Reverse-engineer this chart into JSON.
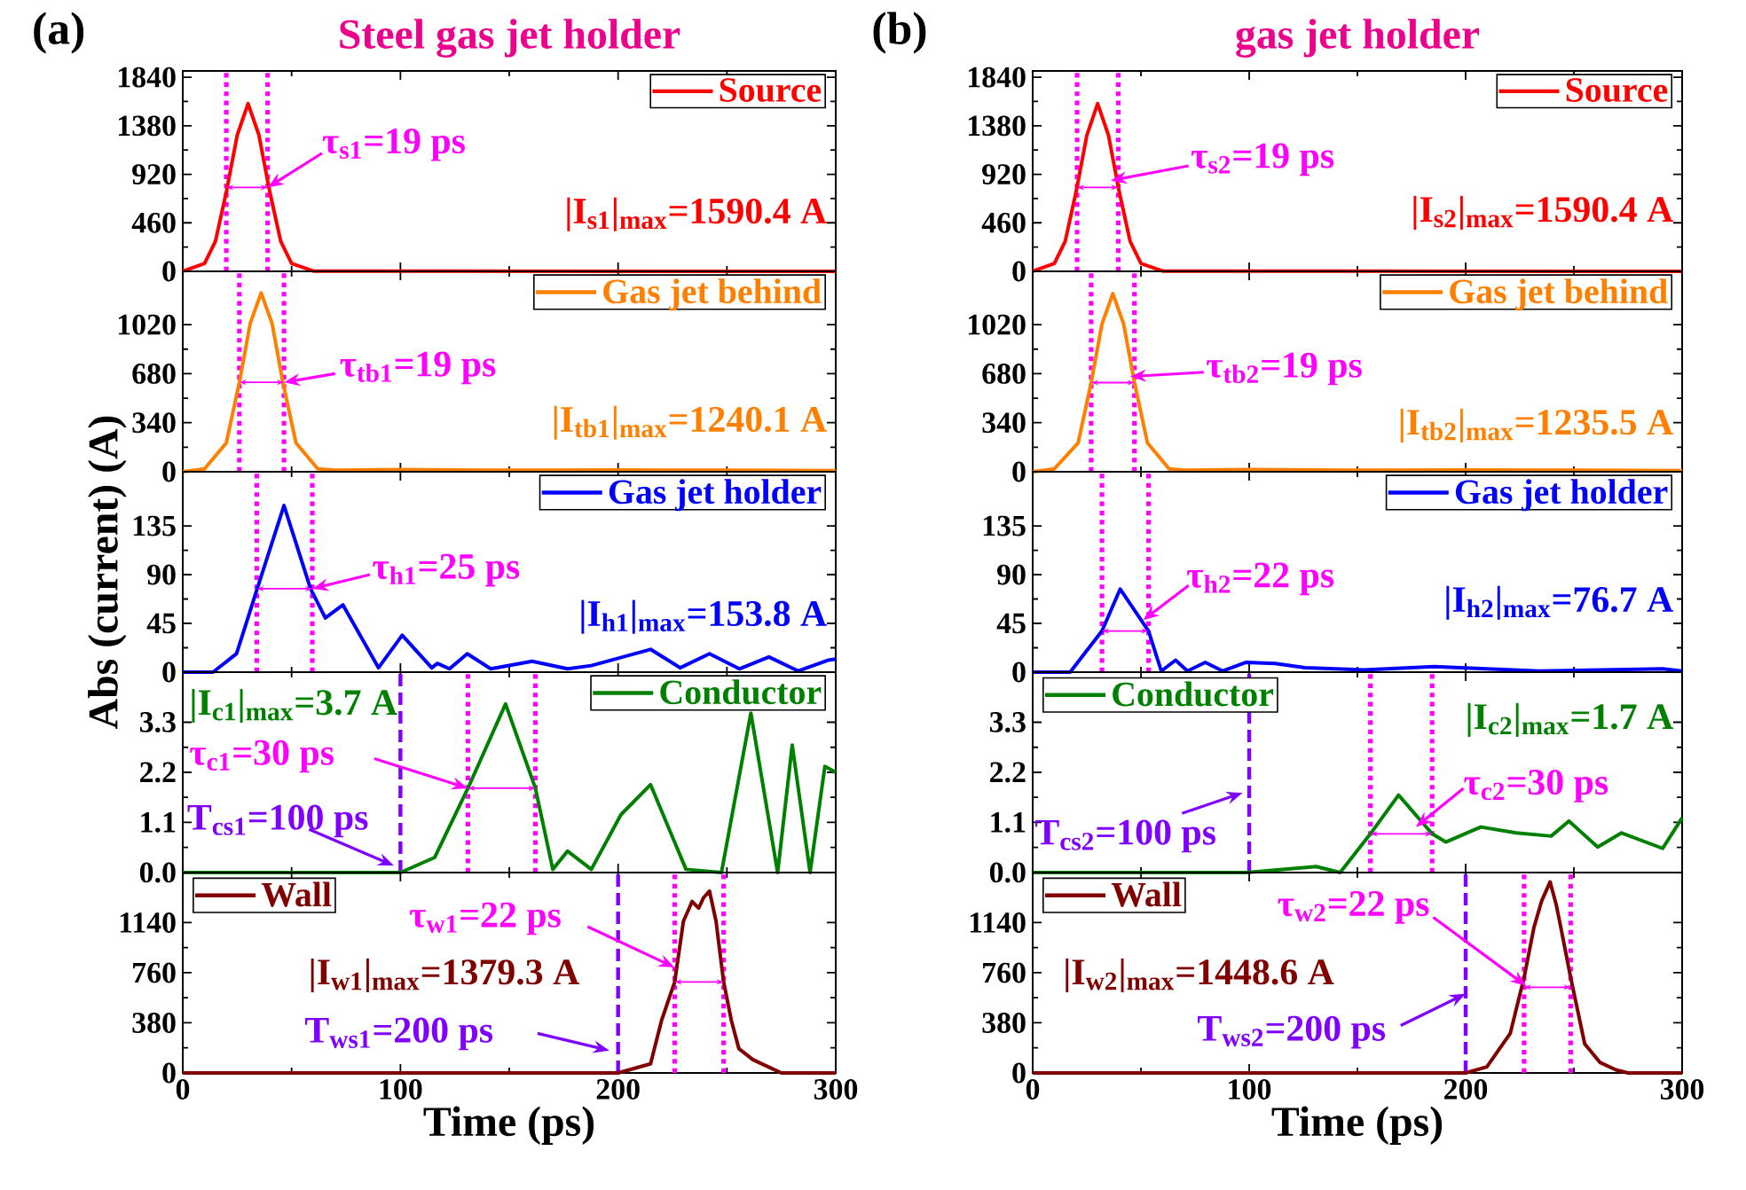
{
  "chart_data": [
    {
      "type": "line",
      "title": "Steel gas jet holder",
      "xlim": [
        0,
        300
      ],
      "xticks": [
        0,
        100,
        200,
        300
      ],
      "ylim": [
        0,
        1900
      ],
      "yticks": [
        0,
        460,
        920,
        1380,
        1840
      ],
      "tick_labels": "y",
      "legend": "top right",
      "series": [
        {
          "name": "Source",
          "color": "#ff0000",
          "x": [
            0,
            10,
            15,
            20,
            25,
            30,
            35,
            40,
            45,
            50,
            60,
            300
          ],
          "values": [
            0,
            75,
            285,
            750,
            1290,
            1590.4,
            1290,
            750,
            285,
            75,
            2,
            0
          ]
        }
      ],
      "ref_lines": [
        {
          "axis": "x",
          "value": 20,
          "color": "#ff00ff",
          "line_style": "dotted"
        },
        {
          "axis": "x",
          "value": 39,
          "color": "#ff00ff",
          "line_style": "dotted"
        }
      ],
      "annotations": [
        "(a)",
        {
          "text": "τ$_{s1}$=19 ps",
          "x": 39,
          "y": 795
        },
        "|I$_{s1}$|$_{max}$=1590.4 A"
      ]
    },
    {
      "type": "line",
      "xlim": [
        0,
        300
      ],
      "xticks": [
        0,
        100,
        200,
        300
      ],
      "ylim": [
        0,
        1390
      ],
      "yticks": [
        0,
        340,
        680,
        1020
      ],
      "tick_labels": "y",
      "legend": "top right",
      "series": [
        {
          "name": "Gas jet behind",
          "color": "#ff8000",
          "x": [
            0,
            10,
            20,
            26,
            31,
            36,
            41,
            46,
            52,
            62,
            70,
            100,
            150,
            200,
            250,
            300
          ],
          "values": [
            0,
            20,
            200,
            620,
            1030,
            1240.1,
            1030,
            620,
            200,
            20,
            10,
            15,
            10,
            12,
            10,
            8
          ]
        }
      ],
      "ref_lines": [
        {
          "axis": "x",
          "value": 26,
          "color": "#ff00ff",
          "line_style": "dotted"
        },
        {
          "axis": "x",
          "value": 46.5,
          "color": "#ff00ff",
          "line_style": "dotted"
        }
      ],
      "annotations": [
        {
          "text": "τ$_{tb1}$=19 ps",
          "x": 46.5,
          "y": 620
        },
        "|I$_{tb1}$|$_{max}$=1240.1 A"
      ]
    },
    {
      "type": "line",
      "ylabel": "Abs (current) (A)",
      "xlim": [
        0,
        300
      ],
      "xticks": [
        0,
        100,
        200,
        300
      ],
      "ylim": [
        0,
        185
      ],
      "yticks": [
        0,
        45,
        90,
        135
      ],
      "tick_labels": "y",
      "legend": "top right",
      "series": [
        {
          "name": "Gas jet holder",
          "color": "#0000ff",
          "x": [
            0,
            13.9,
            24.7,
            34.2,
            46.5,
            58.7,
            65.5,
            73.6,
            89.9,
            100.8,
            114.4,
            117,
            122.5,
            130.7,
            141.5,
            160.5,
            176.8,
            187.7,
            214.9,
            228.5,
            242,
            255.7,
            269.3,
            282.8,
            296.4,
            300
          ],
          "values": [
            0,
            0,
            17,
            77,
            153.8,
            77,
            50,
            62,
            4,
            34,
            4,
            8,
            3,
            17,
            3,
            10,
            3,
            6,
            21,
            4,
            17,
            3,
            14,
            1,
            11,
            12
          ]
        }
      ],
      "ref_lines": [
        {
          "axis": "x",
          "value": 34,
          "color": "#ff00ff",
          "line_style": "dotted"
        },
        {
          "axis": "x",
          "value": 59.5,
          "color": "#ff00ff",
          "line_style": "dotted"
        }
      ],
      "annotations": [
        {
          "text": "τ$_{h1}$=25 ps",
          "x": 59.5,
          "y": 77
        },
        "|I$_{h1}$|$_{max}$=153.8 A"
      ]
    },
    {
      "type": "line",
      "xlim": [
        0,
        300
      ],
      "xticks": [
        0,
        100,
        200,
        300
      ],
      "ylim": [
        0,
        4.4
      ],
      "yticks": [
        {
          "value": 0,
          "label": "0.0"
        },
        1.1,
        2.2,
        3.3
      ],
      "tick_labels": "y",
      "legend": "top right",
      "series": [
        {
          "name": "Conductor",
          "color": "#008000",
          "x": [
            0,
            100,
            115.7,
            131,
            148.3,
            162,
            170,
            176.8,
            187.7,
            201.3,
            214.9,
            231.2,
            247.5,
            261,
            273.3,
            280,
            288.2,
            295,
            300
          ],
          "values": [
            0,
            0,
            0.33,
            1.85,
            3.7,
            1.85,
            0.07,
            0.47,
            0.07,
            1.27,
            1.93,
            0.07,
            0,
            3.5,
            0,
            2.8,
            0,
            2.33,
            2.2
          ]
        }
      ],
      "ref_lines": [
        {
          "axis": "x",
          "value": 131,
          "color": "#ff00ff",
          "line_style": "dotted"
        },
        {
          "axis": "x",
          "value": 162,
          "color": "#ff00ff",
          "line_style": "dotted"
        },
        {
          "axis": "x",
          "value": 100,
          "color": "#7f00ff",
          "line_style": "dashed"
        }
      ],
      "annotations": [
        {
          "text": "τ$_{c1}$=30 ps",
          "x": 131,
          "y": 1.85
        },
        "|I$_{c1}$|$_{max}$=3.7 A",
        {
          "text": "T$_{cs1}$=100 ps",
          "x": 97,
          "y": 0.15
        }
      ]
    },
    {
      "type": "line",
      "xlabel": "Time (ps)",
      "xlim": [
        0,
        300
      ],
      "xticks": [
        0,
        100,
        200,
        300
      ],
      "ylim": [
        0,
        1520
      ],
      "yticks": [
        0,
        380,
        760,
        1140
      ],
      "legend": "top left",
      "series": [
        {
          "name": "Wall",
          "color": "#800000",
          "x": [
            0,
            200,
            214.9,
            220,
            226,
            230,
            234,
            237,
            239.3,
            242,
            245,
            248.5,
            252,
            255.5,
            262,
            269,
            275,
            300
          ],
          "values": [
            0,
            0,
            69,
            400,
            690,
            1150,
            1300,
            1250,
            1330,
            1379.3,
            1150,
            690,
            400,
            184,
            100,
            46,
            0,
            0
          ]
        }
      ],
      "ref_lines": [
        {
          "axis": "x",
          "value": 226,
          "color": "#ff00ff",
          "line_style": "dotted"
        },
        {
          "axis": "x",
          "value": 248.5,
          "color": "#ff00ff",
          "line_style": "dotted"
        },
        {
          "axis": "x",
          "value": 200,
          "color": "#7f00ff",
          "line_style": "dashed"
        }
      ],
      "annotations": [
        {
          "text": "τ$_{w1}$=22 ps",
          "x": 226,
          "y": 800
        },
        "|I$_{w1}$|$_{max}$=1379.3 A",
        {
          "text": "T$_{ws1}$=200 ps",
          "x": 196,
          "y": 170
        }
      ]
    },
    {
      "type": "line",
      "title": "gas jet holder",
      "xlim": [
        0,
        300
      ],
      "xticks": [
        0,
        100,
        200,
        300
      ],
      "ylim": [
        0,
        1900
      ],
      "yticks": [
        0,
        460,
        920,
        1380,
        1840
      ],
      "tick_labels": "y",
      "legend": "top right",
      "series": [
        {
          "name": "Source",
          "color": "#ff0000",
          "x": [
            0,
            10,
            15,
            20,
            25,
            30,
            35,
            40,
            45,
            50,
            60,
            300
          ],
          "values": [
            0,
            75,
            285,
            750,
            1290,
            1590.4,
            1290,
            750,
            285,
            75,
            2,
            0
          ]
        }
      ],
      "ref_lines": [
        {
          "axis": "x",
          "value": 20.5,
          "color": "#ff00ff",
          "line_style": "dotted"
        },
        {
          "axis": "x",
          "value": 39.5,
          "color": "#ff00ff",
          "line_style": "dotted"
        }
      ],
      "annotations": [
        "(b)",
        {
          "text": "τ$_{s2}$=19 ps",
          "x": 36,
          "y": 860
        },
        "|I$_{s2}$|$_{max}$=1590.4 A"
      ]
    },
    {
      "type": "line",
      "xlim": [
        0,
        300
      ],
      "xticks": [
        0,
        100,
        200,
        300
      ],
      "ylim": [
        0,
        1390
      ],
      "yticks": [
        0,
        340,
        680,
        1020
      ],
      "tick_labels": "y",
      "legend": "top right",
      "series": [
        {
          "name": "Gas jet behind",
          "color": "#ff8000",
          "x": [
            0,
            10,
            21,
            27,
            32,
            37,
            42,
            47,
            53,
            63,
            70,
            100,
            150,
            200,
            250,
            300
          ],
          "values": [
            0,
            20,
            200,
            618,
            1025,
            1235.5,
            1025,
            618,
            200,
            20,
            10,
            15,
            10,
            12,
            10,
            8
          ]
        }
      ],
      "ref_lines": [
        {
          "axis": "x",
          "value": 27,
          "color": "#ff00ff",
          "line_style": "dotted"
        },
        {
          "axis": "x",
          "value": 47,
          "color": "#ff00ff",
          "line_style": "dotted"
        }
      ],
      "annotations": [
        {
          "text": "τ$_{tb2}$=19 ps",
          "x": 45,
          "y": 660
        },
        "|I$_{tb2}$|$_{max}$=1235.5 A"
      ]
    },
    {
      "type": "line",
      "xlim": [
        0,
        300
      ],
      "xticks": [
        0,
        100,
        200,
        300
      ],
      "ylim": [
        0,
        185
      ],
      "yticks": [
        0,
        45,
        90,
        135
      ],
      "tick_labels": "y",
      "legend": "top right",
      "series": [
        {
          "name": "Gas jet holder",
          "color": "#0000ff",
          "x": [
            0,
            17.3,
            32,
            40.4,
            53.5,
            59.4,
            66,
            71.5,
            79.7,
            87.8,
            98.6,
            112,
            125.8,
            152.8,
            185.4,
            234,
            291,
            300
          ],
          "values": [
            0,
            0,
            38,
            76.7,
            38,
            1,
            11,
            1,
            9,
            1,
            9,
            8,
            4,
            2,
            5,
            1,
            3,
            1
          ]
        }
      ],
      "ref_lines": [
        {
          "axis": "x",
          "value": 32,
          "color": "#ff00ff",
          "line_style": "dotted"
        },
        {
          "axis": "x",
          "value": 53.5,
          "color": "#ff00ff",
          "line_style": "dotted"
        }
      ],
      "annotations": [
        {
          "text": "τ$_{h2}$=22 ps",
          "x": 51,
          "y": 48
        },
        "|I$_{h2}$|$_{max}$=76.7 A"
      ]
    },
    {
      "type": "line",
      "xlim": [
        0,
        300
      ],
      "xticks": [
        0,
        100,
        200,
        300
      ],
      "ylim": [
        0,
        4.4
      ],
      "yticks": [
        {
          "value": 0,
          "label": "0.0"
        },
        1.1,
        2.2,
        3.3
      ],
      "tick_labels": "y",
      "legend": "top left",
      "series": [
        {
          "name": "Conductor",
          "color": "#008000",
          "x": [
            0,
            98.6,
            131,
            142,
            156,
            169,
            184.5,
            190.8,
            207,
            223.3,
            239.5,
            247.7,
            261,
            272,
            291,
            300
          ],
          "values": [
            0,
            0,
            0.13,
            0,
            0.85,
            1.7,
            0.85,
            0.67,
            1.0,
            0.87,
            0.8,
            1.13,
            0.56,
            0.87,
            0.53,
            1.2
          ]
        }
      ],
      "ref_lines": [
        {
          "axis": "x",
          "value": 156,
          "color": "#ff00ff",
          "line_style": "dotted"
        },
        {
          "axis": "x",
          "value": 184.5,
          "color": "#ff00ff",
          "line_style": "dotted"
        },
        {
          "axis": "x",
          "value": 100,
          "color": "#7f00ff",
          "line_style": "dashed"
        }
      ],
      "annotations": [
        {
          "text": "τ$_{c2}$=30 ps",
          "x": 177,
          "y": 1.0
        },
        "|I$_{c2}$|$_{max}$=1.7 A",
        {
          "text": "T$_{cs2}$=100 ps",
          "x": 97,
          "y": 1.75
        }
      ]
    },
    {
      "type": "line",
      "xlabel": "Time (ps)",
      "xlim": [
        0,
        300
      ],
      "xticks": [
        0,
        100,
        200,
        300
      ],
      "ylim": [
        0,
        1520
      ],
      "yticks": [
        0,
        380,
        760,
        1140
      ],
      "legend": "top left",
      "series": [
        {
          "name": "Wall",
          "color": "#800000",
          "x": [
            0,
            200,
            209.8,
            220.6,
            227,
            231.5,
            235,
            239,
            241.8,
            244,
            248.5,
            255,
            262,
            269.4,
            275,
            300
          ],
          "values": [
            0,
            0,
            46,
            300,
            724,
            1100,
            1300,
            1448.6,
            1278,
            1100,
            724,
            220,
            80,
            23,
            0,
            0
          ]
        }
      ],
      "ref_lines": [
        {
          "axis": "x",
          "value": 227,
          "color": "#ff00ff",
          "line_style": "dotted"
        },
        {
          "axis": "x",
          "value": 248.5,
          "color": "#ff00ff",
          "line_style": "dotted"
        },
        {
          "axis": "x",
          "value": 200,
          "color": "#7f00ff",
          "line_style": "dashed"
        }
      ],
      "annotations": [
        {
          "text": "τ$_{w2}$=22 ps",
          "x": 228,
          "y": 660
        },
        "|I$_{w2}$|$_{max}$=1448.6 A",
        {
          "text": "T$_{ws2}$=200 ps",
          "x": 200,
          "y": 600
        }
      ]
    }
  ]
}
